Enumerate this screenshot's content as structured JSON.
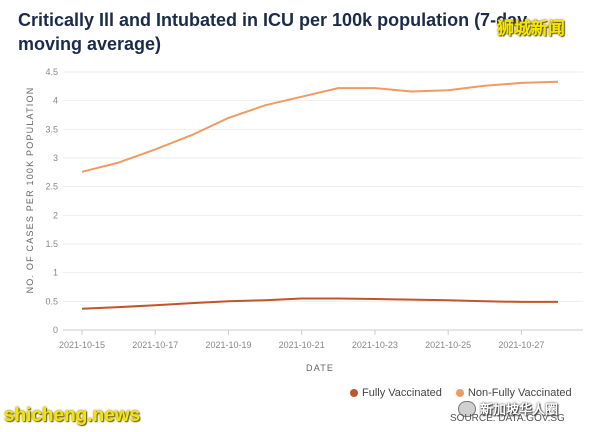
{
  "header": {
    "title": "Critically Ill and Intubated in ICU per 100k population (7-day moving average)"
  },
  "watermarks": {
    "top_right": "狮城新闻",
    "bottom_left": "shicheng.news",
    "bottom_right": "新加坡华人圈"
  },
  "source": "SOURCE: DATA.GOV.SG",
  "chart_data": {
    "type": "line",
    "title": "Critically Ill and Intubated in ICU per 100k population (7-day moving average)",
    "xlabel": "DATE",
    "ylabel": "NO. OF CASES PER 100K POPULATION",
    "ylim": [
      0,
      4.5
    ],
    "yticks": [
      "0",
      "0.5",
      "1",
      "1.5",
      "2",
      "2.5",
      "3",
      "3.5",
      "4",
      "4.5"
    ],
    "x": [
      "2021-10-15",
      "2021-10-16",
      "2021-10-17",
      "2021-10-18",
      "2021-10-19",
      "2021-10-20",
      "2021-10-21",
      "2021-10-22",
      "2021-10-23",
      "2021-10-24",
      "2021-10-25",
      "2021-10-26",
      "2021-10-27",
      "2021-10-28"
    ],
    "xtick_labels": [
      "2021-10-15",
      "2021-10-17",
      "2021-10-19",
      "2021-10-21",
      "2021-10-23",
      "2021-10-25",
      "2021-10-27"
    ],
    "grid": true,
    "legend_position": "bottom-right",
    "series": [
      {
        "name": "Fully Vaccinated",
        "color": "#c0552b",
        "values": [
          0.37,
          0.4,
          0.43,
          0.47,
          0.5,
          0.52,
          0.55,
          0.55,
          0.54,
          0.53,
          0.52,
          0.5,
          0.49,
          0.49
        ]
      },
      {
        "name": "Non-Fully Vaccinated",
        "color": "#f19a62",
        "values": [
          2.76,
          2.92,
          3.15,
          3.4,
          3.7,
          3.92,
          4.07,
          4.22,
          4.22,
          4.16,
          4.18,
          4.26,
          4.31,
          4.33
        ]
      }
    ]
  }
}
